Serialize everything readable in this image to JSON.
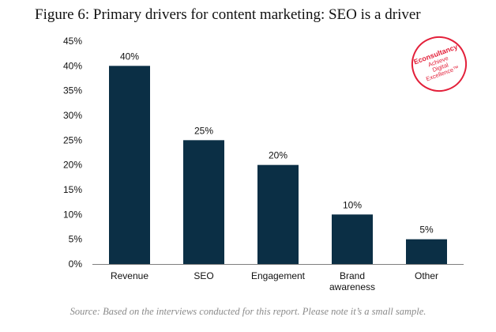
{
  "figure": {
    "title": "Figure 6: Primary drivers for content marketing: SEO is a driver",
    "source_note": "Source: Based on the interviews conducted for this report. Please note it’s a small sample.",
    "logo_text": [
      "Econsultancy",
      "Achieve",
      "Digital",
      "Excellence™"
    ]
  },
  "colors": {
    "bar": "#0b2f45",
    "axis": "#7f7f7f",
    "logo": "#e3203a"
  },
  "chart_data": {
    "type": "bar",
    "title": "Figure 6: Primary drivers for content marketing: SEO is a driver",
    "xlabel": "",
    "ylabel": "",
    "categories": [
      [
        "Revenue"
      ],
      [
        "SEO"
      ],
      [
        "Engagement"
      ],
      [
        "Brand",
        "awareness"
      ],
      [
        "Other"
      ]
    ],
    "values": [
      40,
      25,
      20,
      10,
      5
    ],
    "data_labels": [
      "40%",
      "25%",
      "20%",
      "10%",
      "5%"
    ],
    "y_ticks": [
      "0%",
      "5%",
      "10%",
      "15%",
      "20%",
      "25%",
      "30%",
      "35%",
      "40%",
      "45%"
    ],
    "ylim": [
      0,
      45
    ],
    "grid": false,
    "legend": "none"
  }
}
